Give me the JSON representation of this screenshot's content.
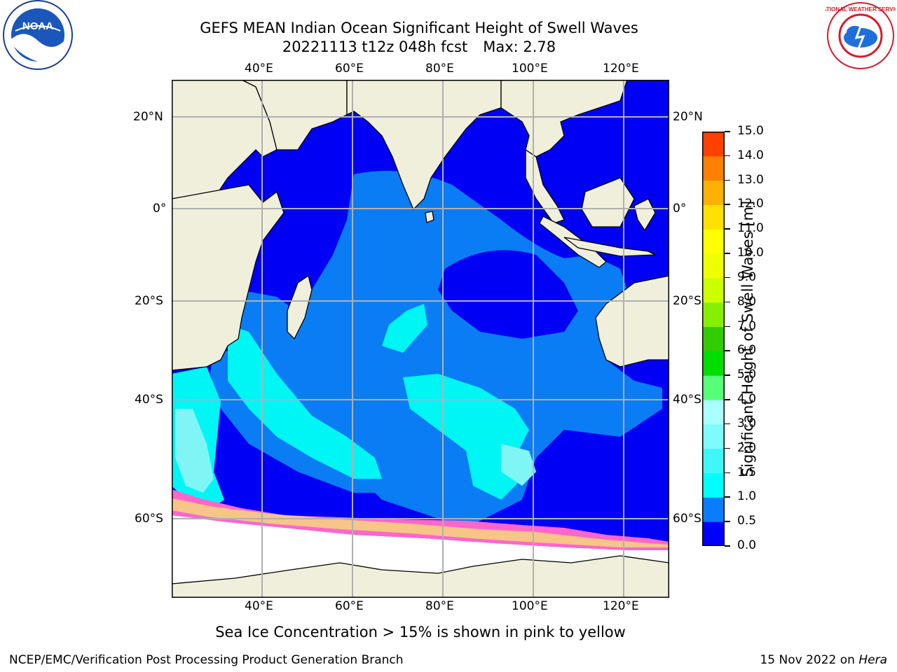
{
  "title": {
    "line1": "GEFS MEAN Indian Ocean Significant Height of Swell Waves",
    "line2": "20221113 t12z 048h fcst",
    "max": "Max: 2.78"
  },
  "map": {
    "lon_ticks_top": [
      "40°E",
      "60°E",
      "80°E",
      "100°E",
      "120°E"
    ],
    "lon_ticks_bottom": [
      "40°E",
      "60°E",
      "80°E",
      "100°E",
      "120°E"
    ],
    "lat_ticks_left": [
      "20°N",
      "0°",
      "20°S",
      "40°S",
      "60°S"
    ],
    "lat_ticks_right": [
      "20°N",
      "0°",
      "20°S",
      "40°S",
      "60°S"
    ],
    "colors": {
      "land": "#efefdc",
      "deep_blue": "#0000f5",
      "mid_blue": "#0a7df5",
      "cyan": "#00f5f5",
      "light_cyan": "#7ff5f5",
      "ice_pink": "#ff66cc",
      "ice_yellow": "#f5d67a"
    }
  },
  "colorbar": {
    "label": "Significant Height of Swell Waves [m]",
    "ticks": [
      "0.0",
      "0.5",
      "1.0",
      "1.5",
      "2.0",
      "3.0",
      "4.0",
      "5.0",
      "6.0",
      "7.0",
      "8.0",
      "9.0",
      "10.0",
      "11.0",
      "12.0",
      "13.0",
      "14.0",
      "15.0"
    ],
    "colors": [
      "#0000ff",
      "#0a7dff",
      "#00ffff",
      "#3ff7f7",
      "#7ffbfb",
      "#aaffff",
      "#55ff77",
      "#00dd00",
      "#33cc00",
      "#88ee00",
      "#ccff00",
      "#eeff00",
      "#ffff00",
      "#ffe000",
      "#ffb000",
      "#ff8000",
      "#ff4000",
      "#ff0000"
    ]
  },
  "ice_note": "Sea Ice Concentration > 15% is shown in pink to yellow",
  "footer": {
    "left": "NCEP/EMC/Verification Post Processing Product Generation Branch",
    "right_date": "15 Nov 2022 on",
    "right_host": "Hera"
  },
  "logos": {
    "left": "NOAA",
    "right": "NATIONAL WEATHER SERVICE"
  }
}
